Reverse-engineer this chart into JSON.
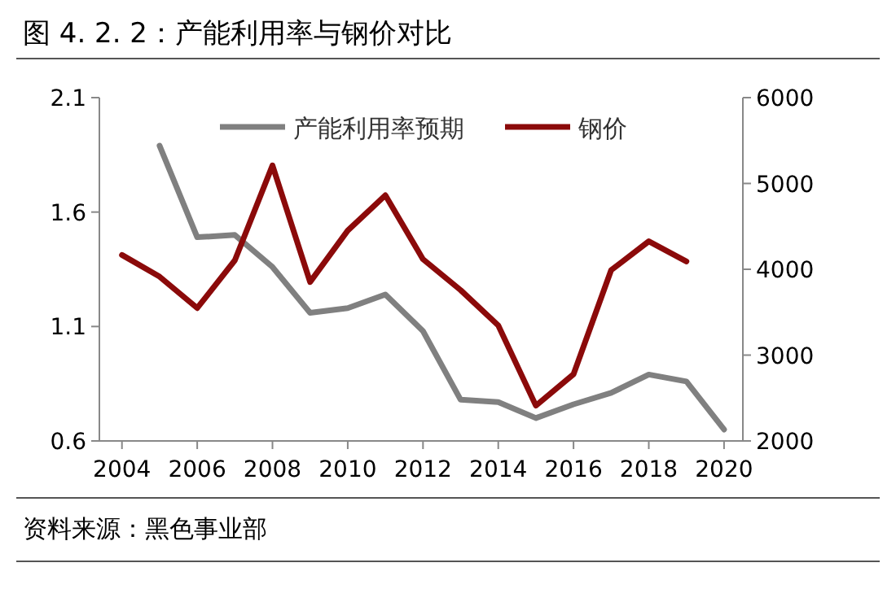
{
  "chart_data": {
    "type": "line",
    "title": "图 4. 2. 2：产能利用率与钢价对比",
    "annotations": [
      "资料来源：黑色事业部"
    ],
    "x": [
      2004,
      2005,
      2006,
      2007,
      2008,
      2009,
      2010,
      2011,
      2012,
      2013,
      2014,
      2015,
      2016,
      2017,
      2018,
      2019,
      2020
    ],
    "series": [
      {
        "name": "产能利用率预期",
        "color": "#808080",
        "values": [
          null,
          1.89,
          1.49,
          1.5,
          1.36,
          1.16,
          1.18,
          1.24,
          1.08,
          0.78,
          0.77,
          0.7,
          0.76,
          0.81,
          0.89,
          0.86,
          0.65
        ]
      },
      {
        "name": "钢价",
        "color": "#8b0a0a",
        "axis": "y2",
        "values": [
          4167,
          3914,
          3548,
          4104,
          5210,
          3852,
          4451,
          4862,
          4117,
          3757,
          3346,
          2411,
          2777,
          3990,
          4326,
          4091,
          null
        ]
      }
    ],
    "xlim": [
      2003.4,
      2020.5
    ],
    "xticks": [
      2004,
      2006,
      2008,
      2010,
      2012,
      2014,
      2016,
      2018,
      2020
    ],
    "ylim": [
      0.6,
      2.1
    ],
    "yticks": [
      {
        "value": 0.6,
        "label": "0.6"
      },
      {
        "value": 1.1,
        "label": "1.1"
      },
      {
        "value": 1.6,
        "label": "1.6"
      },
      {
        "value": 2.1,
        "label": "2.1"
      }
    ],
    "y2lim": [
      2000,
      6000
    ],
    "y2ticks": [
      2000,
      3000,
      4000,
      5000,
      6000
    ],
    "legend": "top",
    "grid": false
  }
}
